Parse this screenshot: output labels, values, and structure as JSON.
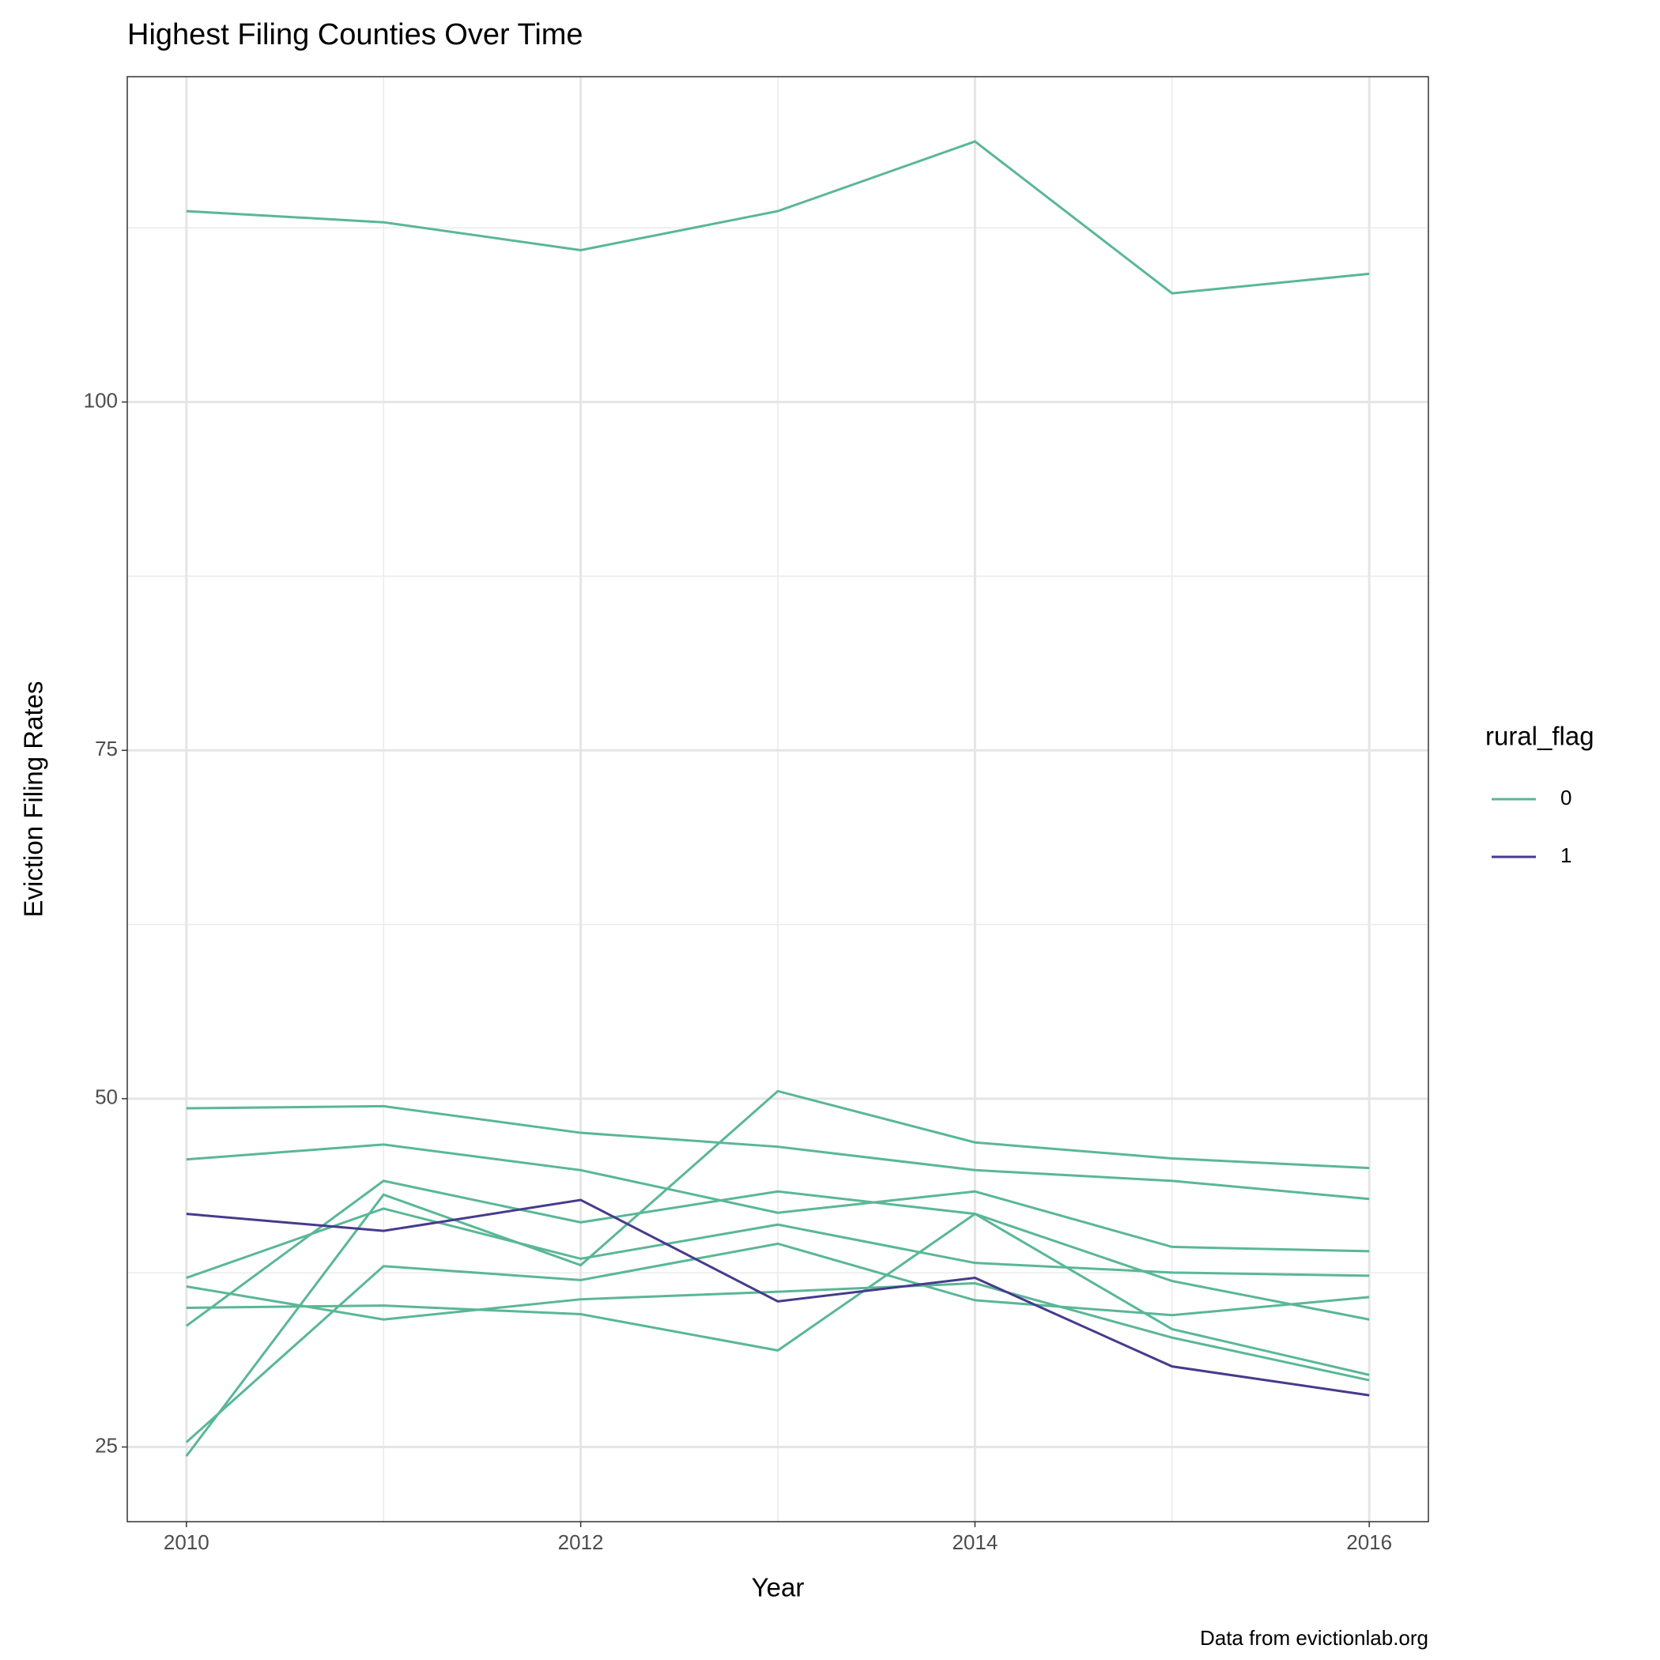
{
  "chart_data": {
    "type": "line",
    "title": "Highest Filing Counties Over Time",
    "x_label": "Year",
    "y_label": "Eviction Filing Rates",
    "caption": "Data from evictionlab.org",
    "legend_title": "rural_flag",
    "x": [
      2010,
      2011,
      2012,
      2013,
      2014,
      2015,
      2016
    ],
    "xlim": [
      2009.7,
      2016.3
    ],
    "xticks": [
      2010,
      2012,
      2014,
      2016
    ],
    "ylim": [
      19.64,
      123.35
    ],
    "yticks": [
      25,
      50,
      75,
      100
    ],
    "grid": true,
    "series": [
      {
        "name": "0",
        "color": "#5ab796",
        "lines": [
          [
            113.7,
            112.9,
            110.9,
            113.7,
            118.7,
            107.8,
            109.2
          ],
          [
            49.31,
            49.46,
            47.55,
            46.55,
            44.87,
            44.1,
            42.8
          ],
          [
            45.64,
            46.71,
            44.87,
            41.81,
            43.34,
            39.36,
            39.05
          ],
          [
            24.35,
            43.11,
            38.05,
            50.54,
            46.86,
            45.71,
            45.02
          ],
          [
            37.14,
            42.11,
            38.51,
            40.96,
            38.21,
            37.52,
            37.29
          ],
          [
            25.34,
            37.98,
            36.98,
            39.59,
            35.53,
            34.46,
            35.76
          ],
          [
            36.52,
            34.15,
            35.6,
            36.14,
            36.75,
            32.85,
            29.79
          ],
          [
            34.99,
            35.15,
            34.53,
            31.93,
            41.73,
            33.46,
            30.17
          ],
          [
            33.69,
            44.1,
            41.12,
            43.34,
            41.73,
            36.91,
            34.15
          ]
        ]
      },
      {
        "name": "1",
        "color": "#473a8c",
        "lines": [
          [
            41.73,
            40.51,
            42.73,
            35.45,
            37.14,
            30.78,
            28.71
          ]
        ]
      }
    ]
  }
}
